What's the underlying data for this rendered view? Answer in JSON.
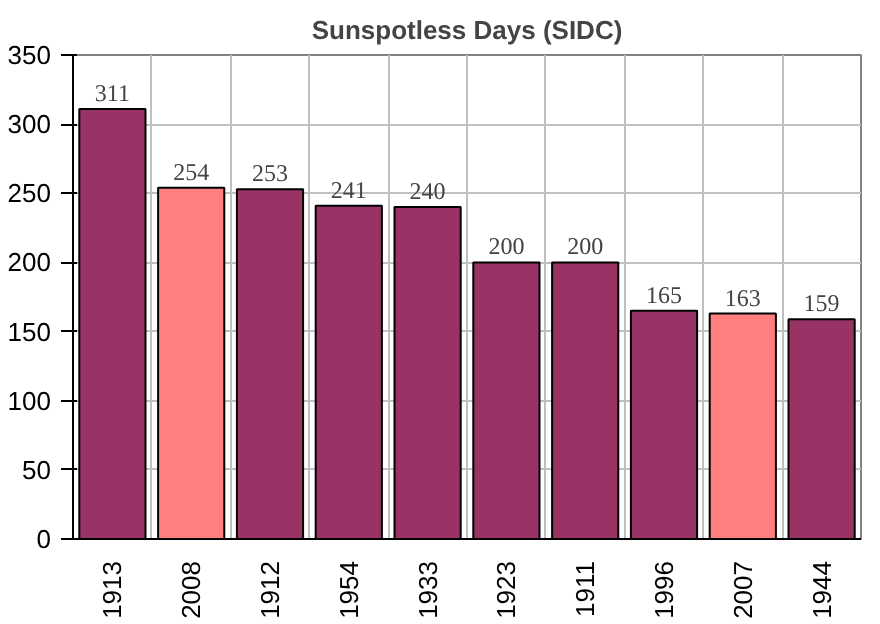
{
  "chart_data": {
    "type": "bar",
    "title": "Sunspotless Days (SIDC)",
    "categories": [
      "1913",
      "2008",
      "1912",
      "1954",
      "1933",
      "1923",
      "1911",
      "1996",
      "2007",
      "1944"
    ],
    "values": [
      311,
      254,
      253,
      241,
      240,
      200,
      200,
      165,
      163,
      159
    ],
    "colors": [
      "#993366",
      "#ff7f7f",
      "#993366",
      "#993366",
      "#993366",
      "#993366",
      "#993366",
      "#993366",
      "#ff7f7f",
      "#993366"
    ],
    "ylim": [
      0,
      350
    ],
    "yticks": [
      0,
      50,
      100,
      150,
      200,
      250,
      300,
      350
    ],
    "grid": true,
    "data_labels": true
  }
}
